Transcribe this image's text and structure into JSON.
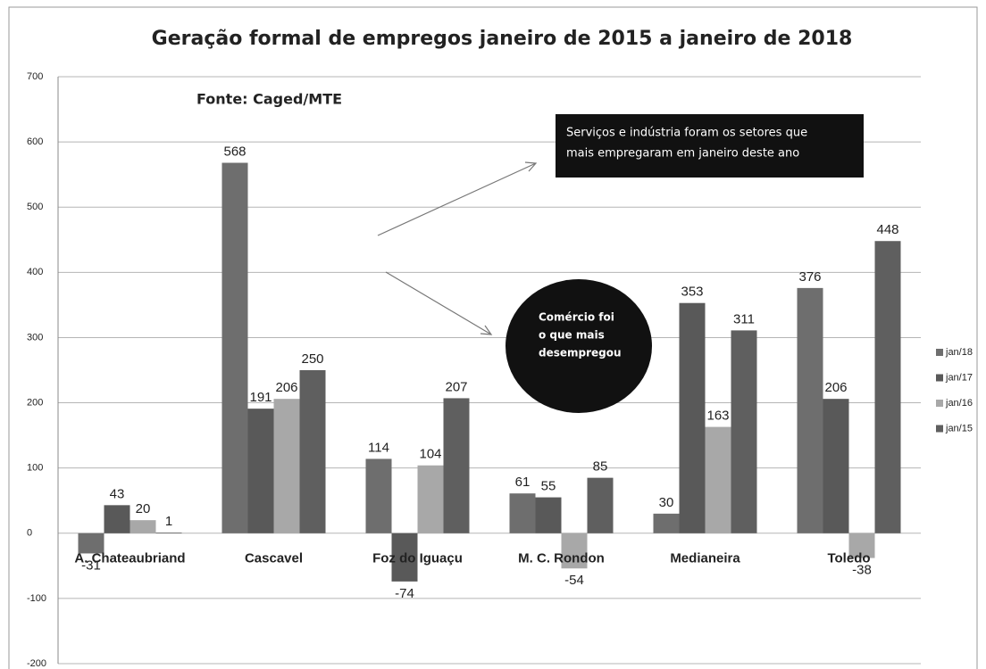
{
  "chart_data": {
    "type": "bar",
    "title": "Geração formal de empregos janeiro de 2015 a janeiro de 2018",
    "source": "Fonte: Caged/MTE",
    "annotations": [
      [
        "Serviços e indústria foram os setores que",
        "mais empregaram em janeiro deste ano"
      ],
      [
        "Comércio foi",
        "o que mais",
        "desempregou"
      ]
    ],
    "categories": [
      "A.  Chateaubriand",
      "Cascavel",
      "Foz do Iguaçu",
      "M. C. Rondon",
      "Medianeira",
      "Toledo"
    ],
    "series": [
      {
        "name": "jan/18",
        "color": "#6e6e6e",
        "values": [
          -31,
          568,
          114,
          61,
          30,
          376
        ]
      },
      {
        "name": "jan/17",
        "color": "#595959",
        "values": [
          43,
          191,
          -74,
          55,
          353,
          206
        ]
      },
      {
        "name": "jan/16",
        "color": "#a8a8a8",
        "values": [
          20,
          206,
          104,
          -54,
          163,
          -38
        ]
      },
      {
        "name": "jan/15",
        "color": "#5f5f5f",
        "values": [
          1,
          250,
          207,
          85,
          311,
          448
        ]
      }
    ],
    "ylim": [
      -200,
      700
    ],
    "yticks": [
      -200,
      -100,
      0,
      100,
      200,
      300,
      400,
      500,
      600,
      700
    ],
    "grid": true,
    "legend": "right"
  }
}
